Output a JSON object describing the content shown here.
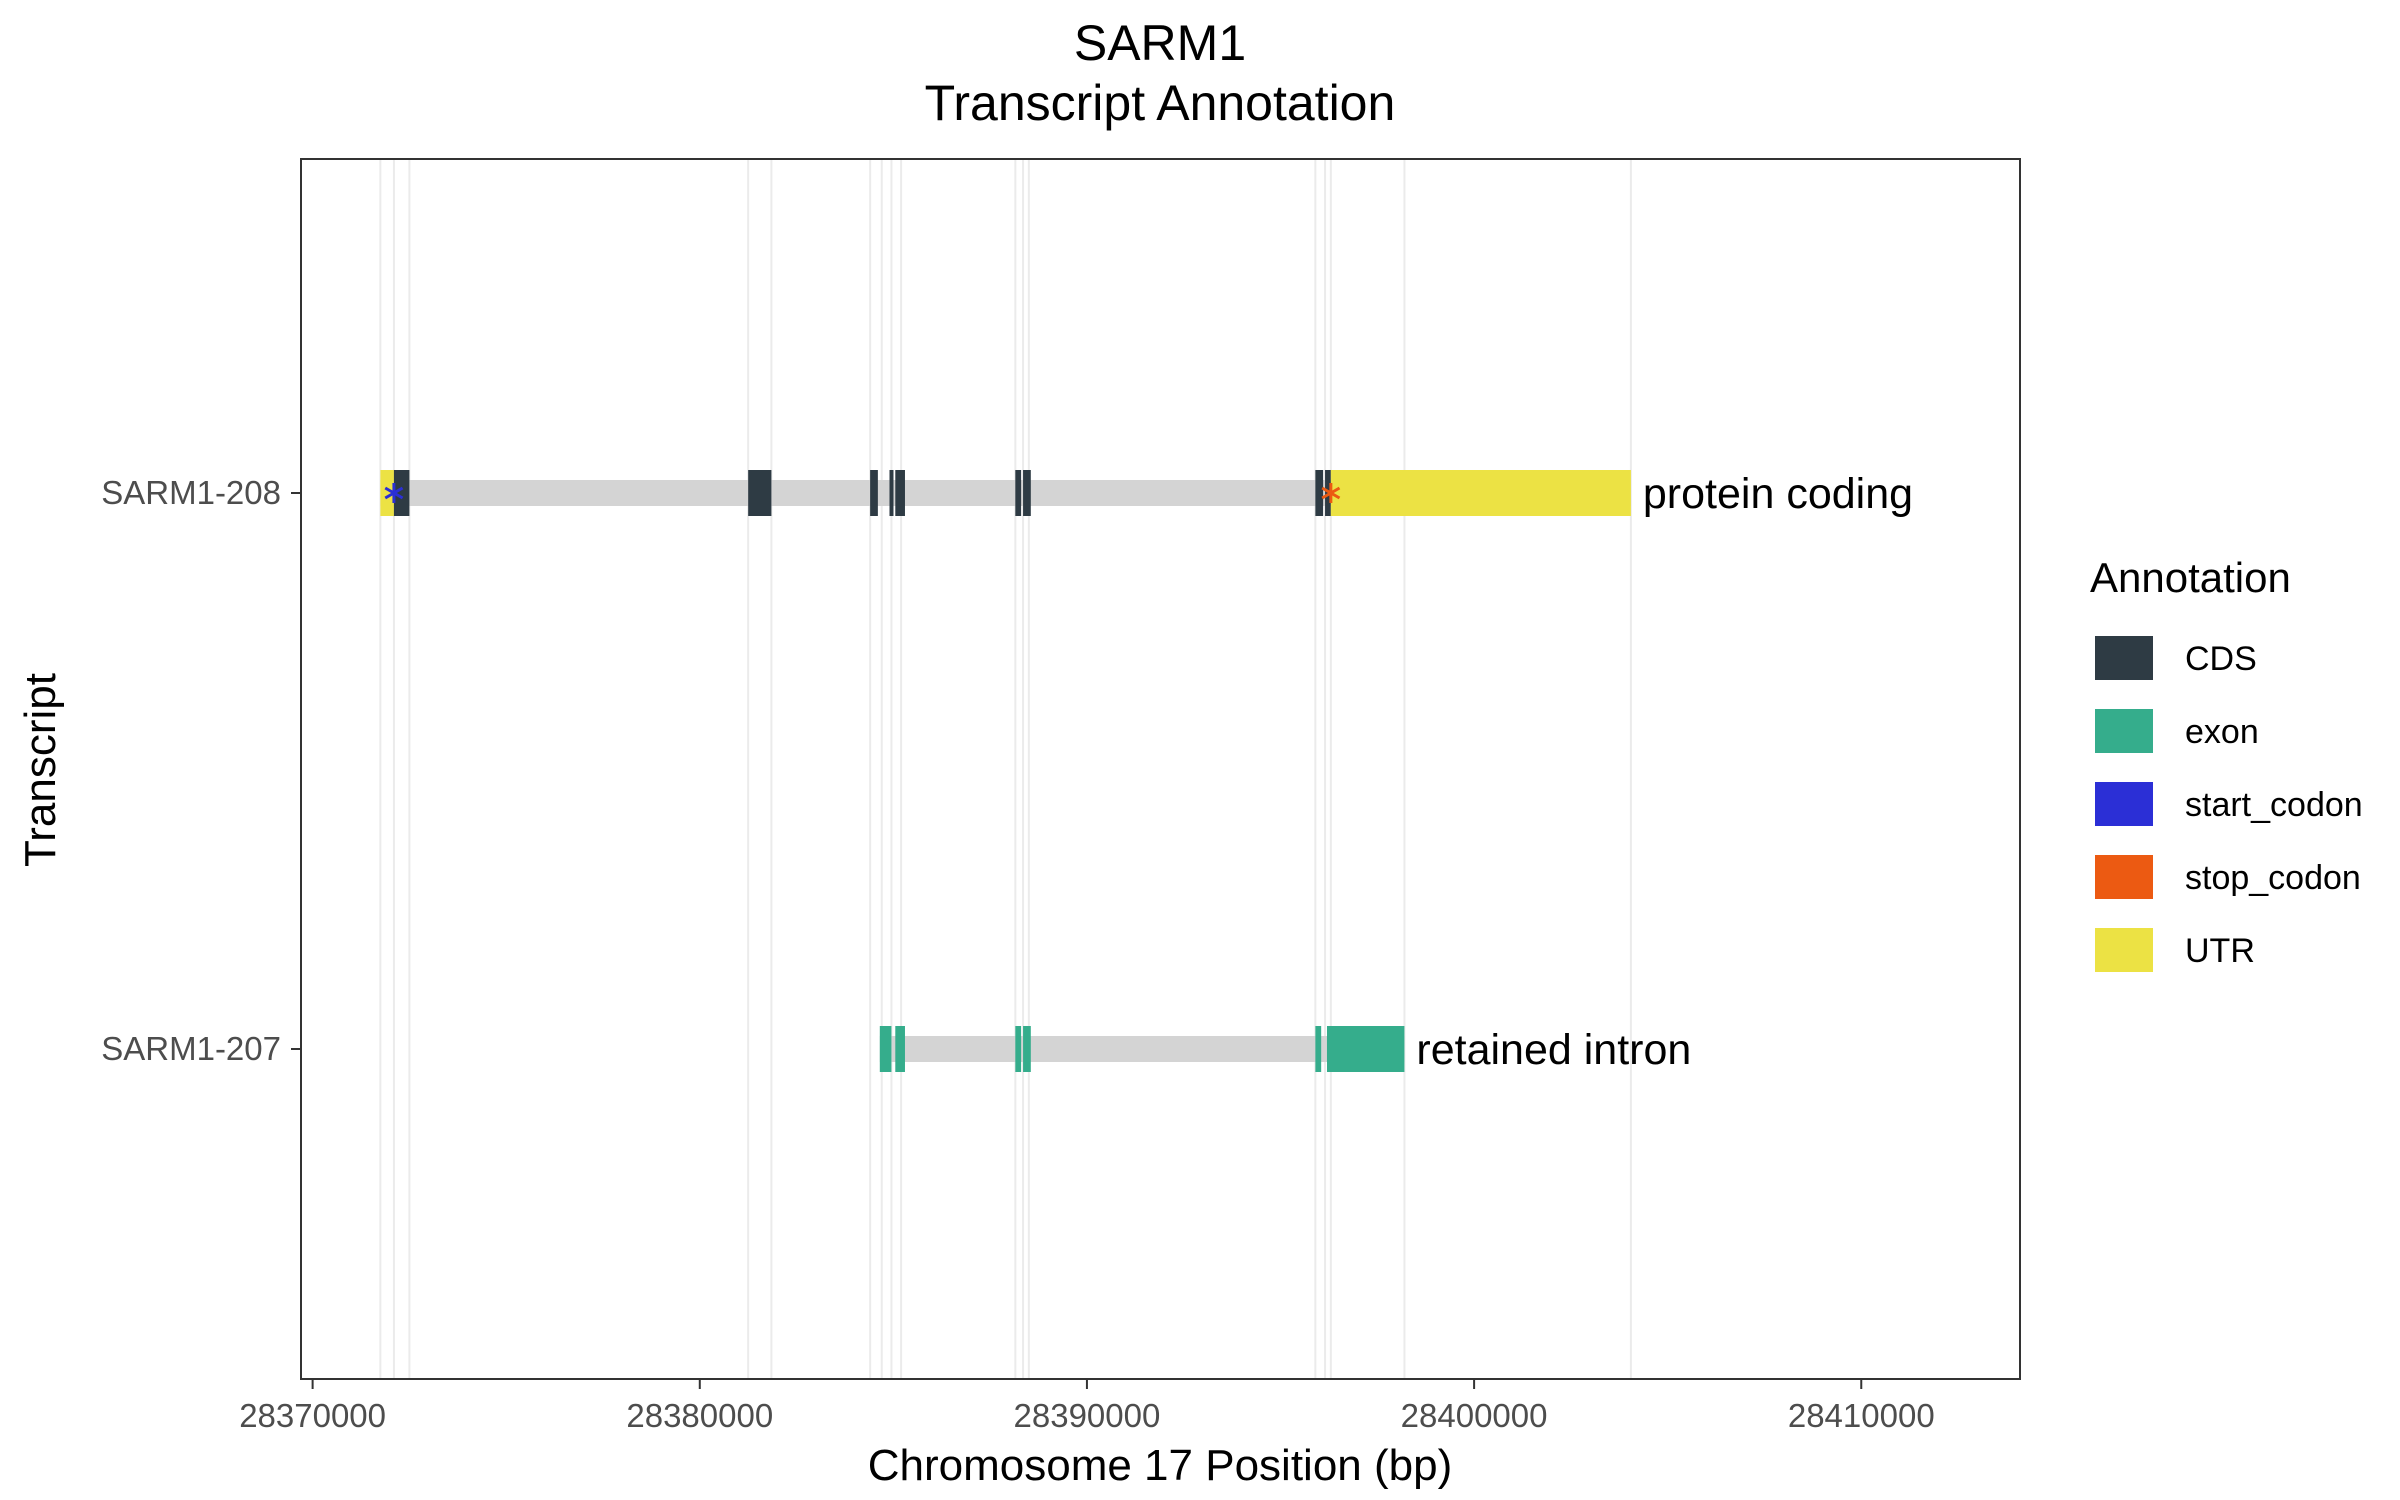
{
  "chart_data": {
    "type": "gene-track",
    "title": "SARM1",
    "subtitle": "Transcript Annotation",
    "xlabel": "Chromosome 17 Position (bp)",
    "ylabel": "Transcript",
    "xlim": [
      28369700,
      28414100
    ],
    "x_ticks": [
      28370000,
      28380000,
      28390000,
      28400000,
      28410000
    ],
    "x_tick_labels": [
      "28370000",
      "28380000",
      "28390000",
      "28400000",
      "28410000"
    ],
    "grid_vertical": [
      28371750,
      28372100,
      28372500,
      28381250,
      28381850,
      28384400,
      28384700,
      28384950,
      28385200,
      28388150,
      28388350,
      28388500,
      28395900,
      28396150,
      28396300,
      28398200,
      28404050
    ],
    "transcripts": [
      {
        "name": "SARM1-208",
        "biotype": "protein coding",
        "intron_range": [
          28371750,
          28404050
        ],
        "features": [
          {
            "type": "UTR",
            "start": 28371750,
            "end": 28372100
          },
          {
            "type": "CDS",
            "start": 28372100,
            "end": 28372500
          },
          {
            "type": "CDS",
            "start": 28381250,
            "end": 28381850
          },
          {
            "type": "CDS",
            "start": 28384400,
            "end": 28384600
          },
          {
            "type": "CDS",
            "start": 28384900,
            "end": 28385000
          },
          {
            "type": "CDS",
            "start": 28385050,
            "end": 28385300
          },
          {
            "type": "CDS",
            "start": 28388150,
            "end": 28388300
          },
          {
            "type": "CDS",
            "start": 28388350,
            "end": 28388550
          },
          {
            "type": "CDS",
            "start": 28395900,
            "end": 28396100
          },
          {
            "type": "CDS",
            "start": 28396150,
            "end": 28396300
          },
          {
            "type": "UTR",
            "start": 28396300,
            "end": 28404050
          }
        ],
        "codons": [
          {
            "type": "start_codon",
            "pos": 28372100
          },
          {
            "type": "stop_codon",
            "pos": 28396300
          }
        ]
      },
      {
        "name": "SARM1-207",
        "biotype": "retained intron",
        "intron_range": [
          28384650,
          28398200
        ],
        "features": [
          {
            "type": "exon",
            "start": 28384650,
            "end": 28384950
          },
          {
            "type": "exon",
            "start": 28385050,
            "end": 28385300
          },
          {
            "type": "exon",
            "start": 28388150,
            "end": 28388300
          },
          {
            "type": "exon",
            "start": 28388350,
            "end": 28388550
          },
          {
            "type": "exon",
            "start": 28395900,
            "end": 28396050
          },
          {
            "type": "exon",
            "start": 28396200,
            "end": 28398200
          }
        ],
        "codons": []
      }
    ],
    "legend": {
      "title": "Annotation",
      "placement": "right",
      "items": [
        {
          "label": "CDS",
          "color": "#2e3b44"
        },
        {
          "label": "exon",
          "color": "#35ad8c"
        },
        {
          "label": "start_codon",
          "color": "#2b2fd6"
        },
        {
          "label": "stop_codon",
          "color": "#ec5a12"
        },
        {
          "label": "UTR",
          "color": "#ece244"
        }
      ]
    },
    "colors": {
      "intron": "#d4d4d4",
      "grid": "#ebebeb",
      "panel_border": "#333333",
      "tick": "#333333"
    }
  }
}
